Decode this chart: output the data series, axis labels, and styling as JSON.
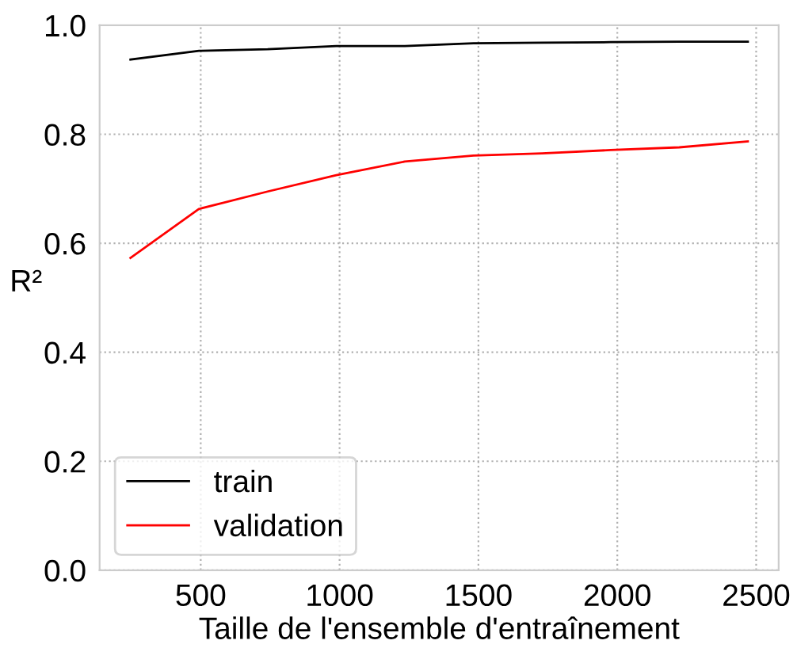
{
  "chart_data": {
    "type": "line",
    "xlabel": "Taille de l'ensemble d'entraînement",
    "ylabel": "R²",
    "x": [
      247,
      494,
      741,
      988,
      1235,
      1482,
      1729,
      1976,
      2223,
      2470
    ],
    "series": [
      {
        "name": "train",
        "color": "#000000",
        "values": [
          0.937,
          0.953,
          0.956,
          0.962,
          0.962,
          0.967,
          0.968,
          0.969,
          0.97,
          0.97
        ]
      },
      {
        "name": "validation",
        "color": "#ff0000",
        "values": [
          0.573,
          0.663,
          0.695,
          0.725,
          0.75,
          0.761,
          0.765,
          0.771,
          0.776,
          0.787
        ]
      }
    ],
    "xlim": [
      136,
      2581
    ],
    "xticks": [
      500,
      1000,
      1500,
      2000,
      2500
    ],
    "ylim": [
      0,
      1
    ],
    "yticks": [
      {
        "value": 0,
        "label": "0.0"
      },
      0.2,
      0.4,
      0.6,
      0.8,
      {
        "value": 1,
        "label": "1.0"
      }
    ],
    "grid": true,
    "legend": "bottom left",
    "marker": "none",
    "line_style": "solid"
  }
}
